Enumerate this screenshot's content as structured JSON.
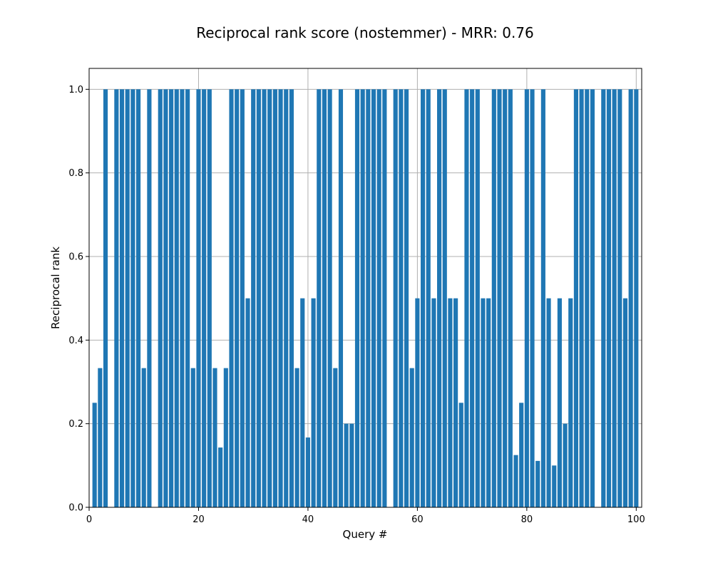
{
  "chart_data": {
    "type": "bar",
    "title": "Reciprocal rank score (nostemmer) - MRR: 0.76",
    "xlabel": "Query #",
    "ylabel": "Reciprocal rank",
    "xlim": [
      0,
      101
    ],
    "ylim": [
      0,
      1.05
    ],
    "xticks": [
      0,
      20,
      40,
      60,
      80,
      100
    ],
    "yticks": [
      0.0,
      0.2,
      0.4,
      0.6,
      0.8,
      1.0
    ],
    "xtick_labels": [
      "0",
      "20",
      "40",
      "60",
      "80",
      "100"
    ],
    "ytick_labels": [
      "0.0",
      "0.2",
      "0.4",
      "0.6",
      "0.8",
      "1.0"
    ],
    "grid": true,
    "bar_color": "#1f77b4",
    "x": [
      1,
      2,
      3,
      4,
      5,
      6,
      7,
      8,
      9,
      10,
      11,
      12,
      13,
      14,
      15,
      16,
      17,
      18,
      19,
      20,
      21,
      22,
      23,
      24,
      25,
      26,
      27,
      28,
      29,
      30,
      31,
      32,
      33,
      34,
      35,
      36,
      37,
      38,
      39,
      40,
      41,
      42,
      43,
      44,
      45,
      46,
      47,
      48,
      49,
      50,
      51,
      52,
      53,
      54,
      55,
      56,
      57,
      58,
      59,
      60,
      61,
      62,
      63,
      64,
      65,
      66,
      67,
      68,
      69,
      70,
      71,
      72,
      73,
      74,
      75,
      76,
      77,
      78,
      79,
      80,
      81,
      82,
      83,
      84,
      85,
      86,
      87,
      88,
      89,
      90,
      91,
      92,
      93,
      94,
      95,
      96,
      97,
      98,
      99,
      100
    ],
    "values": [
      0.25,
      0.333,
      1,
      0,
      1,
      1,
      1,
      1,
      1,
      0.333,
      1,
      0,
      1,
      1,
      1,
      1,
      1,
      1,
      0.333,
      1,
      1,
      1,
      0.333,
      0.143,
      0.333,
      1,
      1,
      1,
      0.5,
      1,
      1,
      1,
      1,
      1,
      1,
      1,
      1,
      0.333,
      0.5,
      0.167,
      0.5,
      1,
      1,
      1,
      0.333,
      1,
      0.2,
      0.2,
      1,
      1,
      1,
      1,
      1,
      1,
      0,
      1,
      1,
      1,
      0.333,
      0.5,
      1,
      1,
      0.5,
      1,
      1,
      0.5,
      0.5,
      0.25,
      1,
      1,
      1,
      0.5,
      0.5,
      1,
      1,
      1,
      1,
      0.125,
      0.25,
      1,
      1,
      0.111,
      1,
      0.5,
      0.1,
      0.5,
      0.2,
      0.5,
      1,
      1,
      1,
      1,
      0,
      1,
      1,
      1,
      1,
      0.5,
      1,
      1
    ]
  }
}
